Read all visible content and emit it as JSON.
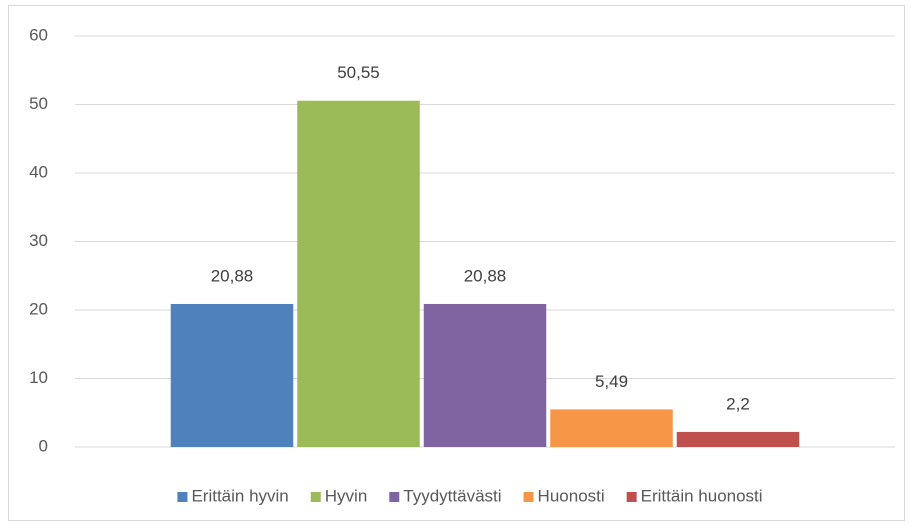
{
  "chart_data": {
    "type": "bar",
    "categories": [
      null
    ],
    "series": [
      {
        "name": "Erittäin hyvin",
        "color": "#4f81bd",
        "values": [
          20.88
        ],
        "value_labels": [
          "20,88"
        ]
      },
      {
        "name": "Hyvin",
        "color": "#9bbb59",
        "values": [
          50.55
        ],
        "value_labels": [
          "50,55"
        ]
      },
      {
        "name": "Tyydyttävästi",
        "color": "#8064a2",
        "values": [
          20.88
        ],
        "value_labels": [
          "20,88"
        ]
      },
      {
        "name": "Huonosti",
        "color": "#f79646",
        "values": [
          5.49
        ],
        "value_labels": [
          "5,49"
        ]
      },
      {
        "name": "Erittäin huonosti",
        "color": "#c0504d",
        "values": [
          2.2
        ],
        "value_labels": [
          "2,2"
        ]
      }
    ],
    "ylim": [
      0,
      60
    ],
    "yticks": [
      0,
      10,
      20,
      30,
      40,
      50,
      60
    ],
    "grid": true,
    "legend": "bottom"
  }
}
